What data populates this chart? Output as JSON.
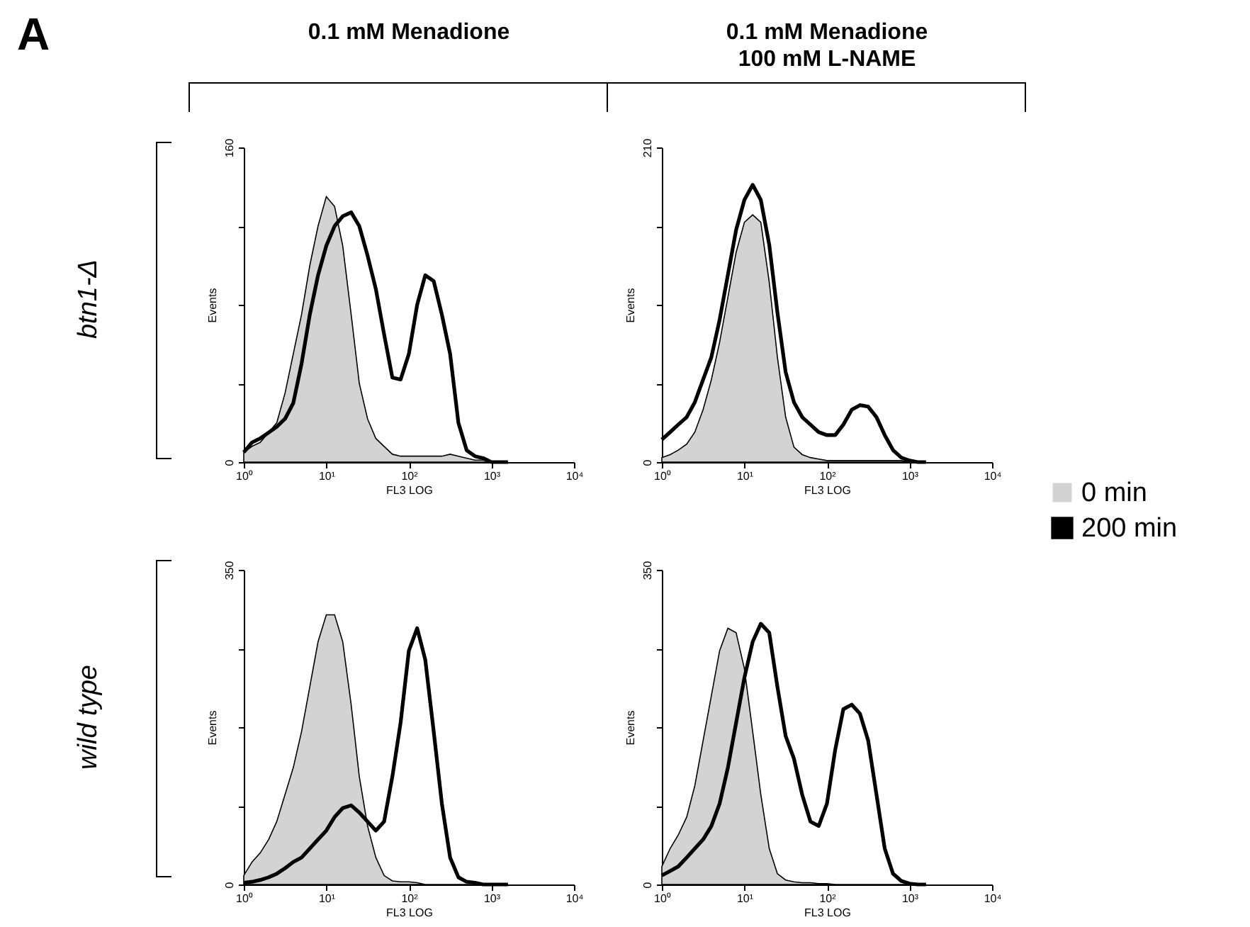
{
  "chart_data": [
    {
      "type": "area",
      "title": "0.1 mM Menadione",
      "xlabel": "FL3 LOG",
      "ylabel": "Events",
      "annotations": [
        "A",
        "btn1-Δ"
      ],
      "log": "x",
      "grid": false,
      "xlim": [
        1,
        10000
      ],
      "xticks": [
        {
          "value": 1,
          "label": "10⁰"
        },
        {
          "value": 10,
          "label": "10¹"
        },
        {
          "value": 100,
          "label": "10²"
        },
        {
          "value": 1000,
          "label": "10³"
        },
        {
          "value": 10000,
          "label": "10⁴"
        }
      ],
      "ylim": [
        0,
        160
      ],
      "yticks": [
        0,
        {
          "value": 40,
          "label": null
        },
        {
          "value": 80,
          "label": null
        },
        {
          "value": 120,
          "label": null
        },
        160
      ],
      "x": [
        1,
        1.26,
        1.58,
        2,
        2.51,
        3.16,
        3.98,
        5.01,
        6.31,
        7.94,
        10,
        12.6,
        15.8,
        20,
        25.1,
        31.6,
        39.8,
        50.1,
        63.1,
        79.4,
        100,
        126,
        158,
        200,
        251,
        316,
        398,
        501,
        631,
        794,
        1000,
        1259,
        1585
      ],
      "series": [
        {
          "color": "#d3d3d3",
          "values": [
            5,
            8,
            10,
            15,
            20,
            35,
            55,
            75,
            100,
            120,
            135,
            130,
            110,
            75,
            40,
            22,
            12,
            8,
            4,
            3,
            3,
            3,
            3,
            3,
            3,
            4,
            3,
            2,
            1,
            1,
            0,
            0,
            0
          ]
        },
        {
          "type": "line",
          "color": "#000000",
          "values": [
            5,
            10,
            12,
            15,
            18,
            22,
            30,
            50,
            75,
            95,
            110,
            120,
            125,
            127,
            120,
            105,
            88,
            65,
            43,
            42,
            55,
            80,
            95,
            92,
            75,
            55,
            20,
            6,
            3,
            2,
            0,
            0,
            0
          ]
        }
      ]
    },
    {
      "type": "area",
      "title": "0.1 mM Menadione\n100 mM L-NAME",
      "xlabel": "FL3 LOG",
      "ylabel": "Events",
      "log": "x",
      "grid": false,
      "legend": "right",
      "xlim": [
        1,
        10000
      ],
      "xticks": [
        {
          "value": 1,
          "label": "10⁰"
        },
        {
          "value": 10,
          "label": "10¹"
        },
        {
          "value": 100,
          "label": "10²"
        },
        {
          "value": 1000,
          "label": "10³"
        },
        {
          "value": 10000,
          "label": "10⁴"
        }
      ],
      "ylim": [
        0,
        210
      ],
      "yticks": [
        0,
        {
          "value": 52.5,
          "label": null
        },
        {
          "value": 105,
          "label": null
        },
        {
          "value": 157.5,
          "label": null
        },
        210
      ],
      "x": [
        1,
        1.26,
        1.58,
        2,
        2.51,
        3.16,
        3.98,
        5.01,
        6.31,
        7.94,
        10,
        12.6,
        15.8,
        20,
        25.1,
        31.6,
        39.8,
        50.1,
        63.1,
        79.4,
        100,
        126,
        158,
        200,
        251,
        316,
        398,
        501,
        631,
        794,
        1000,
        1259,
        1585
      ],
      "series": [
        {
          "name": "0 min",
          "color": "#d3d3d3",
          "values": [
            3,
            5,
            8,
            12,
            20,
            35,
            55,
            80,
            110,
            140,
            160,
            165,
            160,
            120,
            70,
            30,
            10,
            5,
            3,
            2,
            1,
            1,
            1,
            1,
            1,
            1,
            1,
            1,
            1,
            1,
            0,
            0,
            0
          ]
        },
        {
          "type": "line",
          "name": "200 min",
          "color": "#000000",
          "values": [
            15,
            20,
            25,
            30,
            40,
            55,
            70,
            95,
            125,
            155,
            175,
            185,
            175,
            145,
            100,
            60,
            40,
            30,
            25,
            20,
            18,
            18,
            25,
            35,
            38,
            37,
            30,
            18,
            8,
            3,
            1,
            0,
            0
          ]
        }
      ]
    },
    {
      "type": "area",
      "xlabel": "FL3 LOG",
      "ylabel": "Events",
      "annotations": [
        "wild type"
      ],
      "log": "x",
      "grid": false,
      "xlim": [
        1,
        10000
      ],
      "xticks": [
        {
          "value": 1,
          "label": "10⁰"
        },
        {
          "value": 10,
          "label": "10¹"
        },
        {
          "value": 100,
          "label": "10²"
        },
        {
          "value": 1000,
          "label": "10³"
        },
        {
          "value": 10000,
          "label": "10⁴"
        }
      ],
      "ylim": [
        0,
        350
      ],
      "yticks": [
        0,
        {
          "value": 87.5,
          "label": null
        },
        {
          "value": 175,
          "label": null
        },
        {
          "value": 262.5,
          "label": null
        },
        350
      ],
      "x": [
        1,
        1.26,
        1.58,
        2,
        2.51,
        3.16,
        3.98,
        5.01,
        6.31,
        7.94,
        10,
        12.6,
        15.8,
        20,
        25.1,
        31.6,
        39.8,
        50.1,
        63.1,
        79.4,
        100,
        126,
        158,
        200,
        251,
        316,
        398,
        501,
        631,
        794,
        1000,
        1259,
        1585
      ],
      "series": [
        {
          "color": "#d3d3d3",
          "values": [
            10,
            25,
            35,
            50,
            70,
            100,
            130,
            170,
            220,
            270,
            300,
            300,
            270,
            200,
            120,
            65,
            30,
            10,
            4,
            3,
            3,
            2,
            0,
            0,
            0,
            0,
            0,
            0,
            0,
            0,
            0,
            0,
            0
          ]
        },
        {
          "type": "line",
          "color": "#000000",
          "values": [
            2,
            3,
            5,
            8,
            12,
            18,
            25,
            30,
            40,
            50,
            60,
            75,
            85,
            88,
            80,
            70,
            60,
            70,
            120,
            180,
            260,
            285,
            250,
            170,
            90,
            30,
            8,
            3,
            2,
            0,
            0,
            0,
            0
          ]
        }
      ]
    },
    {
      "type": "area",
      "xlabel": "FL3 LOG",
      "ylabel": "Events",
      "log": "x",
      "grid": false,
      "xlim": [
        1,
        10000
      ],
      "xticks": [
        {
          "value": 1,
          "label": "10⁰"
        },
        {
          "value": 10,
          "label": "10¹"
        },
        {
          "value": 100,
          "label": "10²"
        },
        {
          "value": 1000,
          "label": "10³"
        },
        {
          "value": 10000,
          "label": "10⁴"
        }
      ],
      "ylim": [
        0,
        350
      ],
      "yticks": [
        0,
        {
          "value": 87.5,
          "label": null
        },
        {
          "value": 175,
          "label": null
        },
        {
          "value": 262.5,
          "label": null
        },
        350
      ],
      "x": [
        1,
        1.26,
        1.58,
        2,
        2.51,
        3.16,
        3.98,
        5.01,
        6.31,
        7.94,
        10,
        12.6,
        15.8,
        20,
        25.1,
        31.6,
        39.8,
        50.1,
        63.1,
        79.4,
        100,
        126,
        158,
        200,
        251,
        316,
        398,
        501,
        631,
        794,
        1000,
        1259,
        1585
      ],
      "series": [
        {
          "color": "#d3d3d3",
          "values": [
            20,
            40,
            55,
            75,
            110,
            160,
            210,
            260,
            285,
            280,
            240,
            170,
            100,
            40,
            12,
            5,
            3,
            2,
            2,
            1,
            1,
            0,
            0,
            0,
            0,
            0,
            0,
            0,
            0,
            0,
            0,
            0,
            0
          ]
        },
        {
          "type": "line",
          "color": "#000000",
          "values": [
            10,
            15,
            20,
            30,
            40,
            50,
            65,
            90,
            130,
            180,
            230,
            270,
            290,
            280,
            220,
            165,
            140,
            100,
            70,
            65,
            90,
            150,
            195,
            200,
            190,
            160,
            100,
            40,
            12,
            4,
            1,
            0,
            0
          ]
        }
      ]
    }
  ]
}
